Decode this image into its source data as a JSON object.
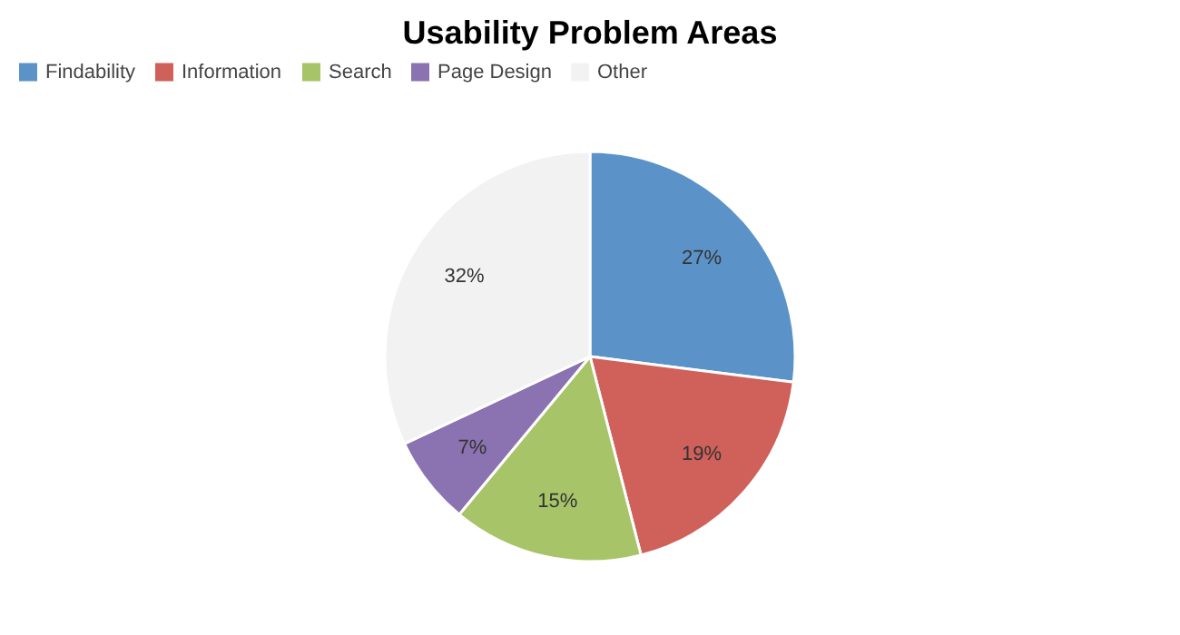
{
  "chart_data": {
    "type": "pie",
    "title": "Usability Problem Areas",
    "categories": [
      "Findability",
      "Information",
      "Search",
      "Page Design",
      "Other"
    ],
    "values": [
      27,
      19,
      15,
      7,
      32
    ],
    "colors": [
      "#5b93c9",
      "#cf605a",
      "#a7c468",
      "#8b72b0",
      "#f2f2f2"
    ],
    "value_labels": [
      "27%",
      "19%",
      "15%",
      "7%",
      "32%"
    ],
    "legend": "top"
  }
}
